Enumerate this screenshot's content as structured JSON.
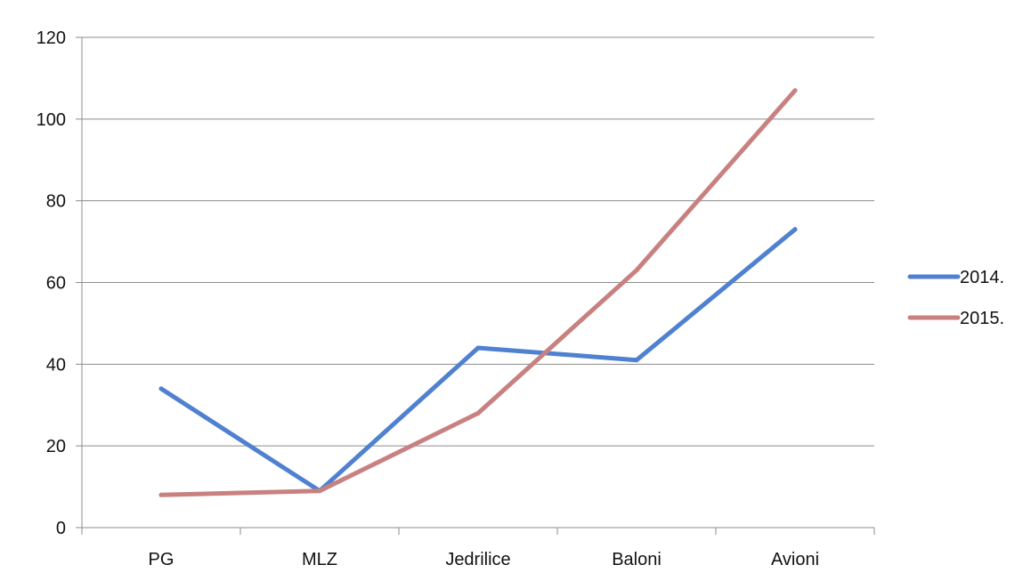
{
  "chart_data": {
    "type": "line",
    "categories": [
      "PG",
      "MLZ",
      "Jedrilice",
      "Baloni",
      "Avioni"
    ],
    "series": [
      {
        "name": "2014.",
        "values": [
          34,
          9,
          44,
          41,
          73
        ],
        "color": "#4F81D0"
      },
      {
        "name": "2015.",
        "values": [
          8,
          9,
          28,
          63,
          107
        ],
        "color": "#C88080"
      }
    ],
    "ylim": [
      0,
      120
    ],
    "yticks": [
      0,
      20,
      40,
      60,
      80,
      100,
      120
    ],
    "grid": true,
    "legend": "right",
    "title": "",
    "xlabel": "",
    "ylabel": ""
  }
}
